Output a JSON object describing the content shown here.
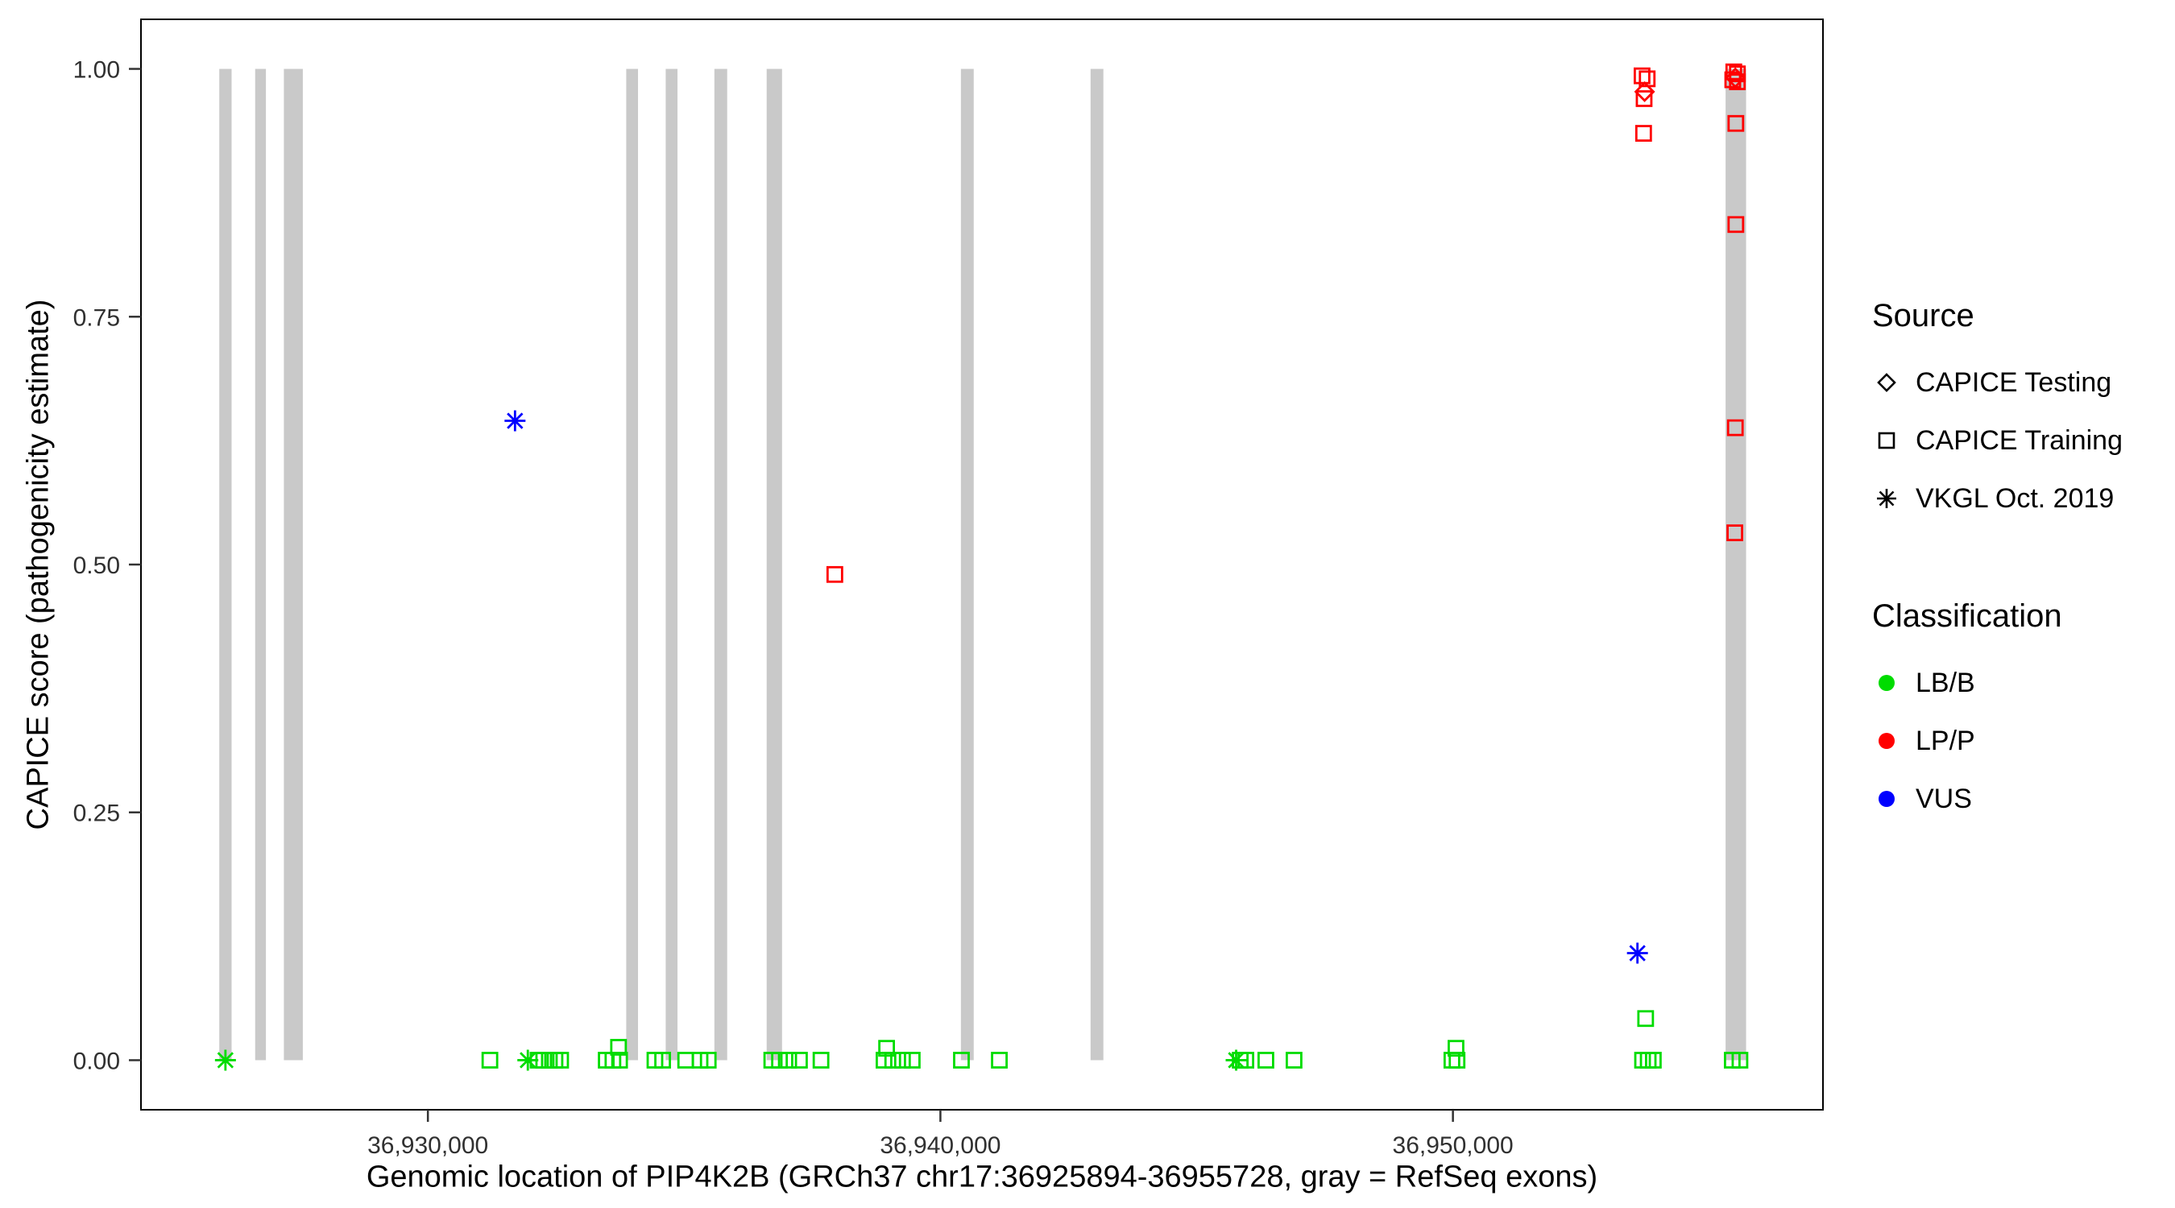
{
  "figure": {
    "background": "#FFFFFF",
    "panel_border_color": "#000000",
    "tick_color": "#333333",
    "tick_label_color": "#303030"
  },
  "chart_data": {
    "type": "scatter",
    "title": "",
    "xlabel": "Genomic location of PIP4K2B (GRCh37 chr17:36925894-36955728, gray = RefSeq exons)",
    "ylabel": "CAPICE score (pathogenicity estimate)",
    "xlim": [
      36924402,
      36957220
    ],
    "ylim": [
      -0.05,
      1.05
    ],
    "grid": false,
    "legend_position": "right",
    "x_ticks": [
      {
        "value": 36930000,
        "label": "36,930,000"
      },
      {
        "value": 36940000,
        "label": "36,940,000"
      },
      {
        "value": 36950000,
        "label": "36,950,000"
      }
    ],
    "y_ticks": [
      {
        "value": 0.0,
        "label": "0.00"
      },
      {
        "value": 0.25,
        "label": "0.25"
      },
      {
        "value": 0.5,
        "label": "0.50"
      },
      {
        "value": 0.75,
        "label": "0.75"
      },
      {
        "value": 1.0,
        "label": "1.00"
      }
    ],
    "exon_color": "#C9C9C9",
    "exons": [
      {
        "start": 36925930,
        "end": 36926170
      },
      {
        "start": 36926630,
        "end": 36926840
      },
      {
        "start": 36927190,
        "end": 36927560
      },
      {
        "start": 36933870,
        "end": 36934100
      },
      {
        "start": 36934640,
        "end": 36934870
      },
      {
        "start": 36935590,
        "end": 36935840
      },
      {
        "start": 36936610,
        "end": 36936910
      },
      {
        "start": 36940400,
        "end": 36940650
      },
      {
        "start": 36942930,
        "end": 36943180
      },
      {
        "start": 36955320,
        "end": 36955720
      }
    ],
    "classification_colors": {
      "LB/B": "#00DC00",
      "LP/P": "#FF0000",
      "VUS": "#0000FF"
    },
    "source_shapes": {
      "testing": "diamond",
      "training": "square",
      "vkgl": "asterisk"
    },
    "source_labels": {
      "testing": "CAPICE Testing",
      "training": "CAPICE Training",
      "vkgl": "VKGL Oct. 2019"
    },
    "points": [
      {
        "x": 36926050,
        "y": 0.0,
        "cls": "LB/B",
        "src": "vkgl"
      },
      {
        "x": 36931210,
        "y": 0.0,
        "cls": "LB/B",
        "src": "training"
      },
      {
        "x": 36931950,
        "y": 0.0,
        "cls": "LB/B",
        "src": "vkgl"
      },
      {
        "x": 36932150,
        "y": 0.0,
        "cls": "LB/B",
        "src": "training"
      },
      {
        "x": 36932260,
        "y": 0.0,
        "cls": "LB/B",
        "src": "training"
      },
      {
        "x": 36932370,
        "y": 0.0,
        "cls": "LB/B",
        "src": "training"
      },
      {
        "x": 36932480,
        "y": 0.0,
        "cls": "LB/B",
        "src": "training"
      },
      {
        "x": 36932590,
        "y": 0.0,
        "cls": "LB/B",
        "src": "training"
      },
      {
        "x": 36933480,
        "y": 0.0,
        "cls": "LB/B",
        "src": "training"
      },
      {
        "x": 36933610,
        "y": 0.0,
        "cls": "LB/B",
        "src": "training"
      },
      {
        "x": 36933720,
        "y": 0.013,
        "cls": "LB/B",
        "src": "training"
      },
      {
        "x": 36933740,
        "y": 0.0,
        "cls": "LB/B",
        "src": "training"
      },
      {
        "x": 36934430,
        "y": 0.0,
        "cls": "LB/B",
        "src": "training"
      },
      {
        "x": 36934580,
        "y": 0.0,
        "cls": "LB/B",
        "src": "training"
      },
      {
        "x": 36935030,
        "y": 0.0,
        "cls": "LB/B",
        "src": "training"
      },
      {
        "x": 36935310,
        "y": 0.0,
        "cls": "LB/B",
        "src": "training"
      },
      {
        "x": 36935470,
        "y": 0.0,
        "cls": "LB/B",
        "src": "training"
      },
      {
        "x": 36936710,
        "y": 0.0,
        "cls": "LB/B",
        "src": "training"
      },
      {
        "x": 36936860,
        "y": 0.0,
        "cls": "LB/B",
        "src": "training"
      },
      {
        "x": 36937040,
        "y": 0.0,
        "cls": "LB/B",
        "src": "training"
      },
      {
        "x": 36937250,
        "y": 0.0,
        "cls": "LB/B",
        "src": "training"
      },
      {
        "x": 36937670,
        "y": 0.0,
        "cls": "LB/B",
        "src": "training"
      },
      {
        "x": 36938900,
        "y": 0.0,
        "cls": "LB/B",
        "src": "training"
      },
      {
        "x": 36938950,
        "y": 0.012,
        "cls": "LB/B",
        "src": "training"
      },
      {
        "x": 36939070,
        "y": 0.0,
        "cls": "LB/B",
        "src": "training"
      },
      {
        "x": 36939260,
        "y": 0.0,
        "cls": "LB/B",
        "src": "training"
      },
      {
        "x": 36939450,
        "y": 0.0,
        "cls": "LB/B",
        "src": "training"
      },
      {
        "x": 36940410,
        "y": 0.0,
        "cls": "LB/B",
        "src": "training"
      },
      {
        "x": 36941150,
        "y": 0.0,
        "cls": "LB/B",
        "src": "training"
      },
      {
        "x": 36945770,
        "y": 0.0,
        "cls": "LB/B",
        "src": "vkgl"
      },
      {
        "x": 36945850,
        "y": 0.0,
        "cls": "LB/B",
        "src": "training"
      },
      {
        "x": 36945960,
        "y": 0.0,
        "cls": "LB/B",
        "src": "training"
      },
      {
        "x": 36946350,
        "y": 0.0,
        "cls": "LB/B",
        "src": "training"
      },
      {
        "x": 36946900,
        "y": 0.0,
        "cls": "LB/B",
        "src": "training"
      },
      {
        "x": 36949980,
        "y": 0.0,
        "cls": "LB/B",
        "src": "training"
      },
      {
        "x": 36950060,
        "y": 0.012,
        "cls": "LB/B",
        "src": "training"
      },
      {
        "x": 36950080,
        "y": 0.0,
        "cls": "LB/B",
        "src": "training"
      },
      {
        "x": 36953700,
        "y": 0.0,
        "cls": "LB/B",
        "src": "training"
      },
      {
        "x": 36953810,
        "y": 0.0,
        "cls": "LB/B",
        "src": "training"
      },
      {
        "x": 36953910,
        "y": 0.0,
        "cls": "LB/B",
        "src": "training"
      },
      {
        "x": 36953760,
        "y": 0.042,
        "cls": "LB/B",
        "src": "training"
      },
      {
        "x": 36955450,
        "y": 0.0,
        "cls": "LB/B",
        "src": "training"
      },
      {
        "x": 36955600,
        "y": 0.0,
        "cls": "LB/B",
        "src": "training"
      },
      {
        "x": 36937940,
        "y": 0.49,
        "cls": "LP/P",
        "src": "training"
      },
      {
        "x": 36953690,
        "y": 0.993,
        "cls": "LP/P",
        "src": "training"
      },
      {
        "x": 36953790,
        "y": 0.99,
        "cls": "LP/P",
        "src": "training"
      },
      {
        "x": 36953740,
        "y": 0.977,
        "cls": "LP/P",
        "src": "testing"
      },
      {
        "x": 36953730,
        "y": 0.97,
        "cls": "LP/P",
        "src": "training"
      },
      {
        "x": 36953720,
        "y": 0.935,
        "cls": "LP/P",
        "src": "training"
      },
      {
        "x": 36955480,
        "y": 0.997,
        "cls": "LP/P",
        "src": "training"
      },
      {
        "x": 36955550,
        "y": 0.995,
        "cls": "LP/P",
        "src": "training"
      },
      {
        "x": 36955510,
        "y": 0.991,
        "cls": "LP/P",
        "src": "testing"
      },
      {
        "x": 36955460,
        "y": 0.989,
        "cls": "LP/P",
        "src": "training"
      },
      {
        "x": 36955550,
        "y": 0.987,
        "cls": "LP/P",
        "src": "training"
      },
      {
        "x": 36955520,
        "y": 0.945,
        "cls": "LP/P",
        "src": "training"
      },
      {
        "x": 36955520,
        "y": 0.843,
        "cls": "LP/P",
        "src": "training"
      },
      {
        "x": 36955510,
        "y": 0.638,
        "cls": "LP/P",
        "src": "training"
      },
      {
        "x": 36955500,
        "y": 0.532,
        "cls": "LP/P",
        "src": "training"
      },
      {
        "x": 36931700,
        "y": 0.645,
        "cls": "VUS",
        "src": "vkgl"
      },
      {
        "x": 36953600,
        "y": 0.108,
        "cls": "VUS",
        "src": "vkgl"
      }
    ]
  },
  "legend": {
    "source": {
      "title": "Source",
      "items": [
        {
          "label": "CAPICE Testing",
          "shape": "diamond"
        },
        {
          "label": "CAPICE Training",
          "shape": "square"
        },
        {
          "label": "VKGL Oct. 2019",
          "shape": "asterisk"
        }
      ]
    },
    "classification": {
      "title": "Classification",
      "items": [
        {
          "label": "LB/B",
          "color": "#00DC00"
        },
        {
          "label": "LP/P",
          "color": "#FF0000"
        },
        {
          "label": "VUS",
          "color": "#0000FF"
        }
      ]
    }
  }
}
